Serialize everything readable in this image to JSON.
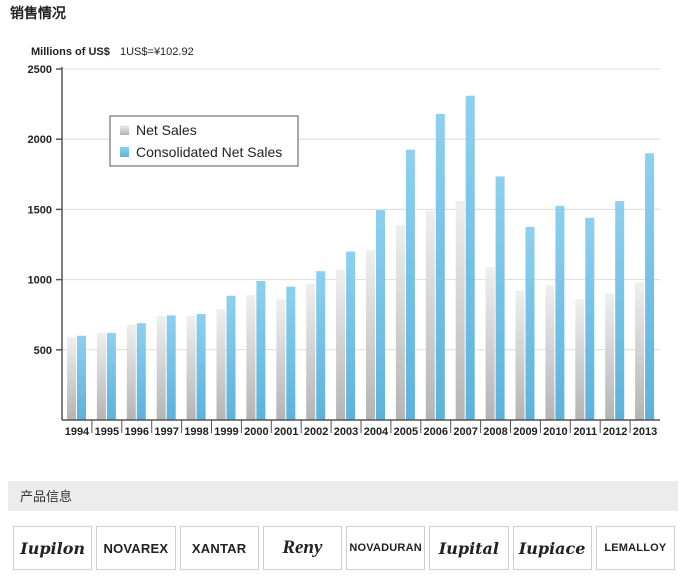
{
  "page": {
    "section_title": "销售情况",
    "product_section_title": "产品信息"
  },
  "chart_data": {
    "type": "bar",
    "title": "",
    "ylabel": "Millions of US$",
    "note": "1US$=¥102.92",
    "ylim": [
      0,
      2500
    ],
    "yticks": [
      500,
      1000,
      1500,
      2000,
      2500
    ],
    "grid": true,
    "legend_position": "top-left",
    "categories": [
      "1994",
      "1995",
      "1996",
      "1997",
      "1998",
      "1999",
      "2000",
      "2001",
      "2002",
      "2003",
      "2004",
      "2005",
      "2006",
      "2007",
      "2008",
      "2009",
      "2010",
      "2011",
      "2012",
      "2013"
    ],
    "series": [
      {
        "name": "Net Sales",
        "color": "#c8c8c8",
        "values": [
          590,
          620,
          680,
          740,
          740,
          790,
          890,
          860,
          970,
          1070,
          1210,
          1390,
          1490,
          1560,
          1090,
          920,
          960,
          860,
          900,
          980
        ]
      },
      {
        "name": "Consolidated Net Sales",
        "color": "#7cc4e6",
        "values": [
          600,
          620,
          690,
          745,
          755,
          885,
          990,
          950,
          1060,
          1200,
          1495,
          1925,
          2180,
          2310,
          1735,
          1375,
          1525,
          1440,
          1560,
          1900
        ]
      }
    ]
  },
  "logos": [
    {
      "id": "iupilon",
      "label": "Iupilon",
      "style": "script"
    },
    {
      "id": "novarex",
      "label": "NOVAREX",
      "style": "sans"
    },
    {
      "id": "xantar",
      "label": "XANTAR",
      "style": "sans"
    },
    {
      "id": "reny",
      "label": "Reny",
      "style": "reny"
    },
    {
      "id": "novaduran",
      "label": "NOVADURAN",
      "style": "sans small"
    },
    {
      "id": "iupital",
      "label": "Iupital",
      "style": "script"
    },
    {
      "id": "iupiace",
      "label": "Iupiace",
      "style": "script"
    },
    {
      "id": "lemalloy",
      "label": "LEMALLOY",
      "style": "sans small"
    }
  ]
}
